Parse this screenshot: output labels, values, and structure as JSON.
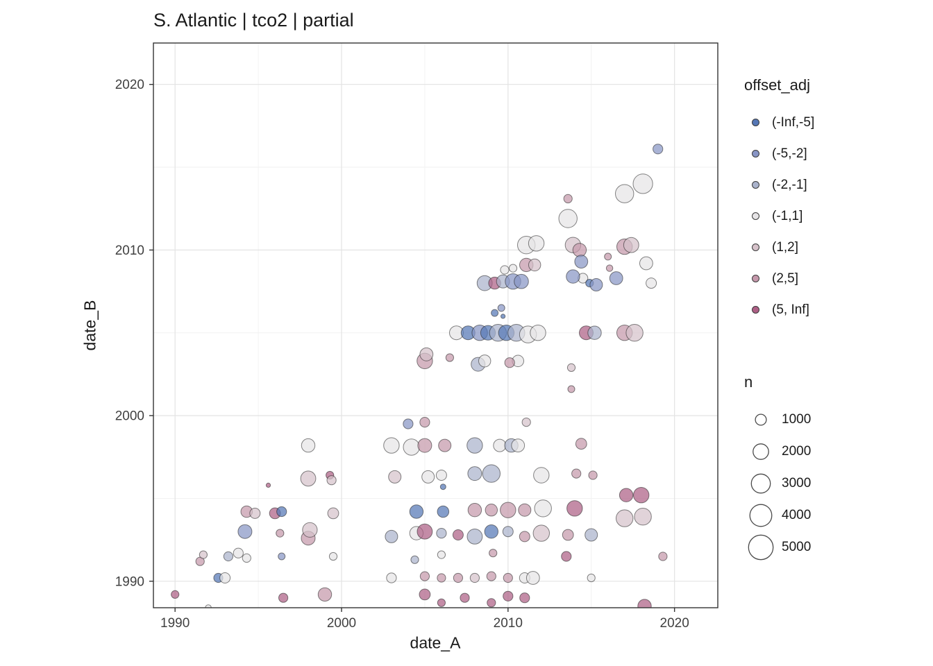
{
  "title": "S. Atlantic | tco2 | partial",
  "axes": {
    "x_label": "date_A",
    "y_label": "date_B",
    "x_ticks": [
      1990,
      2000,
      2010,
      2020
    ],
    "y_ticks": [
      1990,
      2000,
      2010,
      2020
    ]
  },
  "legend_color": {
    "title": "offset_adj",
    "items": [
      {
        "label": "(-Inf,-5]",
        "color": "#5577b5"
      },
      {
        "label": "(-5,-2]",
        "color": "#8895c5"
      },
      {
        "label": "(-2,-1]",
        "color": "#aab3cc"
      },
      {
        "label": "(-1,1]",
        "color": "#e6e4e6"
      },
      {
        "label": "(1,2]",
        "color": "#d6c2ca"
      },
      {
        "label": "(2,5]",
        "color": "#c598ab"
      },
      {
        "label": "(5, Inf]",
        "color": "#ad5f85"
      }
    ]
  },
  "legend_size": {
    "title": "n",
    "items": [
      1000,
      2000,
      3000,
      4000,
      5000
    ]
  },
  "chart_data": {
    "type": "scatter",
    "title": "S. Atlantic | tco2 | partial",
    "xlabel": "date_A",
    "ylabel": "date_B",
    "x_range": [
      1988.7,
      2022.6
    ],
    "y_range": [
      1988.4,
      2022.5
    ],
    "grid": "on",
    "legend_position": "right",
    "size_variable": "n",
    "color_variable": "offset_adj",
    "columns": [
      "date_A",
      "date_B",
      "n",
      "offset_adj_index"
    ],
    "points": [
      [
        1990.0,
        1989.2,
        500,
        6
      ],
      [
        1991.5,
        1991.2,
        600,
        5
      ],
      [
        1991.7,
        1991.6,
        500,
        4
      ],
      [
        1992.0,
        1988.4,
        300,
        3
      ],
      [
        1992.6,
        1990.2,
        700,
        0
      ],
      [
        1993.0,
        1990.2,
        900,
        3
      ],
      [
        1993.2,
        1991.5,
        700,
        2
      ],
      [
        1993.8,
        1991.7,
        800,
        3
      ],
      [
        1994.3,
        1991.4,
        600,
        3
      ],
      [
        1994.2,
        1993.0,
        1600,
        1
      ],
      [
        1994.3,
        1994.2,
        1100,
        5
      ],
      [
        1994.8,
        1994.1,
        900,
        4
      ],
      [
        1995.6,
        1995.8,
        150,
        6
      ],
      [
        1996.0,
        1994.1,
        1000,
        6
      ],
      [
        1996.4,
        1994.2,
        800,
        0
      ],
      [
        1996.3,
        1992.9,
        500,
        5
      ],
      [
        1996.4,
        1991.5,
        400,
        1
      ],
      [
        1996.5,
        1989.0,
        700,
        6
      ],
      [
        1998.0,
        1992.6,
        1600,
        5
      ],
      [
        1998.1,
        1993.1,
        1800,
        4
      ],
      [
        1998.0,
        1996.2,
        1900,
        4
      ],
      [
        1998.0,
        1998.2,
        1500,
        3
      ],
      [
        1999.0,
        1989.2,
        1500,
        5
      ],
      [
        1999.5,
        1991.5,
        500,
        3
      ],
      [
        1999.3,
        1996.4,
        500,
        6
      ],
      [
        1999.4,
        1996.1,
        700,
        4
      ],
      [
        1999.5,
        1994.1,
        1000,
        4
      ],
      [
        2003.0,
        1990.2,
        800,
        3
      ],
      [
        2003.0,
        1992.7,
        1300,
        2
      ],
      [
        2003.2,
        1996.3,
        1300,
        4
      ],
      [
        2003.0,
        1998.2,
        2000,
        3
      ],
      [
        2004.0,
        1999.5,
        800,
        1
      ],
      [
        2004.2,
        1998.1,
        2200,
        3
      ],
      [
        2004.4,
        1991.3,
        500,
        2
      ],
      [
        2004.5,
        1992.9,
        1500,
        3
      ],
      [
        2004.5,
        1994.2,
        1500,
        0
      ],
      [
        2005.0,
        1989.2,
        1000,
        6
      ],
      [
        2005.0,
        1990.3,
        700,
        5
      ],
      [
        2005.0,
        1993.0,
        1900,
        6
      ],
      [
        2005.2,
        1996.3,
        1300,
        3
      ],
      [
        2005.0,
        1998.2,
        1600,
        5
      ],
      [
        2005.0,
        1999.6,
        800,
        5
      ],
      [
        2005.0,
        2003.3,
        2000,
        5
      ],
      [
        2005.1,
        2003.7,
        1400,
        4
      ],
      [
        2006.0,
        1988.7,
        500,
        6
      ],
      [
        2006.0,
        1990.2,
        600,
        5
      ],
      [
        2006.0,
        1991.6,
        500,
        3
      ],
      [
        2006.0,
        1992.9,
        800,
        2
      ],
      [
        2006.1,
        1994.2,
        1100,
        0
      ],
      [
        2006.1,
        1995.7,
        250,
        0
      ],
      [
        2006.0,
        1996.4,
        900,
        3
      ],
      [
        2006.2,
        1998.2,
        1300,
        5
      ],
      [
        2006.5,
        2003.5,
        500,
        5
      ],
      [
        2007.0,
        1990.2,
        700,
        5
      ],
      [
        2007.0,
        1992.8,
        900,
        6
      ],
      [
        2007.4,
        1989.0,
        700,
        6
      ],
      [
        2006.9,
        2005.0,
        1600,
        3
      ],
      [
        2007.6,
        2005.0,
        1600,
        0
      ],
      [
        2008.0,
        1990.2,
        700,
        4
      ],
      [
        2008.0,
        1992.7,
        1900,
        2
      ],
      [
        2008.0,
        1994.3,
        1500,
        5
      ],
      [
        2008.0,
        1996.5,
        1600,
        2
      ],
      [
        2008.0,
        1998.2,
        2000,
        2
      ],
      [
        2008.2,
        2003.1,
        1600,
        2
      ],
      [
        2008.6,
        2003.3,
        1200,
        3
      ],
      [
        2008.3,
        2005.0,
        2000,
        1
      ],
      [
        2008.8,
        2005.0,
        1800,
        0
      ],
      [
        2008.6,
        2008.0,
        1900,
        2
      ],
      [
        2009.0,
        1988.7,
        600,
        6
      ],
      [
        2009.0,
        1990.3,
        700,
        5
      ],
      [
        2009.1,
        1991.7,
        500,
        5
      ],
      [
        2009.0,
        1993.0,
        1500,
        0
      ],
      [
        2009.0,
        1994.3,
        1200,
        5
      ],
      [
        2009.0,
        1996.5,
        2600,
        2
      ],
      [
        2009.5,
        1998.2,
        1300,
        3
      ],
      [
        2009.4,
        2005.0,
        2400,
        2
      ],
      [
        2009.9,
        2005.0,
        2000,
        0
      ],
      [
        2009.2,
        2006.2,
        400,
        0
      ],
      [
        2009.6,
        2006.5,
        400,
        1
      ],
      [
        2009.7,
        2006.0,
        150,
        0
      ],
      [
        2009.2,
        2008.0,
        1200,
        6
      ],
      [
        2009.7,
        2008.1,
        1400,
        2
      ],
      [
        2009.8,
        2008.8,
        600,
        3
      ],
      [
        2010.3,
        2008.9,
        500,
        3
      ],
      [
        2010.0,
        1989.1,
        800,
        6
      ],
      [
        2010.0,
        1990.2,
        700,
        5
      ],
      [
        2010.0,
        1993.0,
        900,
        2
      ],
      [
        2010.0,
        1994.3,
        2000,
        5
      ],
      [
        2010.2,
        1998.2,
        1500,
        2
      ],
      [
        2010.6,
        1998.2,
        1400,
        3
      ],
      [
        2010.5,
        2005.0,
        2400,
        2
      ],
      [
        2010.3,
        2008.1,
        2000,
        1
      ],
      [
        2010.8,
        2008.1,
        1700,
        1
      ],
      [
        2010.6,
        2003.3,
        1100,
        3
      ],
      [
        2010.1,
        2003.2,
        800,
        5
      ],
      [
        2011.0,
        1989.0,
        800,
        6
      ],
      [
        2011.0,
        1990.2,
        900,
        3
      ],
      [
        2011.0,
        1992.7,
        900,
        5
      ],
      [
        2011.0,
        1994.3,
        1300,
        5
      ],
      [
        2011.1,
        1999.6,
        600,
        4
      ],
      [
        2011.5,
        1990.2,
        1400,
        3
      ],
      [
        2011.2,
        2004.9,
        2400,
        3
      ],
      [
        2011.8,
        2005.0,
        2000,
        3
      ],
      [
        2011.1,
        2009.1,
        1500,
        5
      ],
      [
        2011.6,
        2009.1,
        1200,
        4
      ],
      [
        2011.1,
        2010.3,
        2600,
        3
      ],
      [
        2011.7,
        2010.4,
        2000,
        3
      ],
      [
        2012.0,
        1992.9,
        2200,
        4
      ],
      [
        2012.1,
        1994.4,
        2400,
        3
      ],
      [
        2012.0,
        1996.4,
        2000,
        3
      ],
      [
        2013.5,
        1991.5,
        800,
        6
      ],
      [
        2013.6,
        1992.8,
        1000,
        5
      ],
      [
        2014.0,
        1994.4,
        2000,
        6
      ],
      [
        2014.1,
        1996.5,
        700,
        5
      ],
      [
        2014.4,
        1998.3,
        1000,
        5
      ],
      [
        2015.0,
        1990.2,
        500,
        3
      ],
      [
        2015.0,
        1992.8,
        1300,
        2
      ],
      [
        2015.1,
        1996.4,
        600,
        5
      ],
      [
        2017.0,
        1993.8,
        2400,
        4
      ],
      [
        2017.1,
        1995.2,
        1500,
        6
      ],
      [
        2018.0,
        1995.2,
        2000,
        6
      ],
      [
        2018.1,
        1993.9,
        2400,
        4
      ],
      [
        2018.2,
        1988.5,
        1500,
        6
      ],
      [
        2019.3,
        1991.5,
        600,
        5
      ],
      [
        2013.6,
        2013.1,
        600,
        5
      ],
      [
        2013.6,
        2011.9,
        2800,
        3
      ],
      [
        2013.9,
        2010.3,
        2000,
        4
      ],
      [
        2014.3,
        2010.0,
        1500,
        5
      ],
      [
        2014.4,
        2009.3,
        1400,
        1
      ],
      [
        2014.5,
        2008.3,
        800,
        3
      ],
      [
        2014.9,
        2008.0,
        500,
        0
      ],
      [
        2013.9,
        2008.4,
        1500,
        1
      ],
      [
        2014.7,
        2005.0,
        1600,
        6
      ],
      [
        2015.2,
        2005.0,
        1500,
        2
      ],
      [
        2015.3,
        2007.9,
        1300,
        1
      ],
      [
        2013.8,
        2001.6,
        400,
        5
      ],
      [
        2013.8,
        2002.9,
        500,
        4
      ],
      [
        2016.0,
        2009.6,
        400,
        5
      ],
      [
        2016.1,
        2008.9,
        350,
        5
      ],
      [
        2016.5,
        2008.3,
        1400,
        1
      ],
      [
        2017.0,
        2005.0,
        2000,
        5
      ],
      [
        2017.6,
        2005.0,
        2400,
        4
      ],
      [
        2017.0,
        2010.2,
        2000,
        5
      ],
      [
        2017.4,
        2010.3,
        1900,
        4
      ],
      [
        2017.0,
        2013.4,
        2800,
        3
      ],
      [
        2018.1,
        2014.0,
        3200,
        3
      ],
      [
        2018.3,
        2009.2,
        1400,
        3
      ],
      [
        2018.6,
        2008.0,
        900,
        3
      ],
      [
        2019.0,
        2016.1,
        800,
        1
      ]
    ]
  }
}
